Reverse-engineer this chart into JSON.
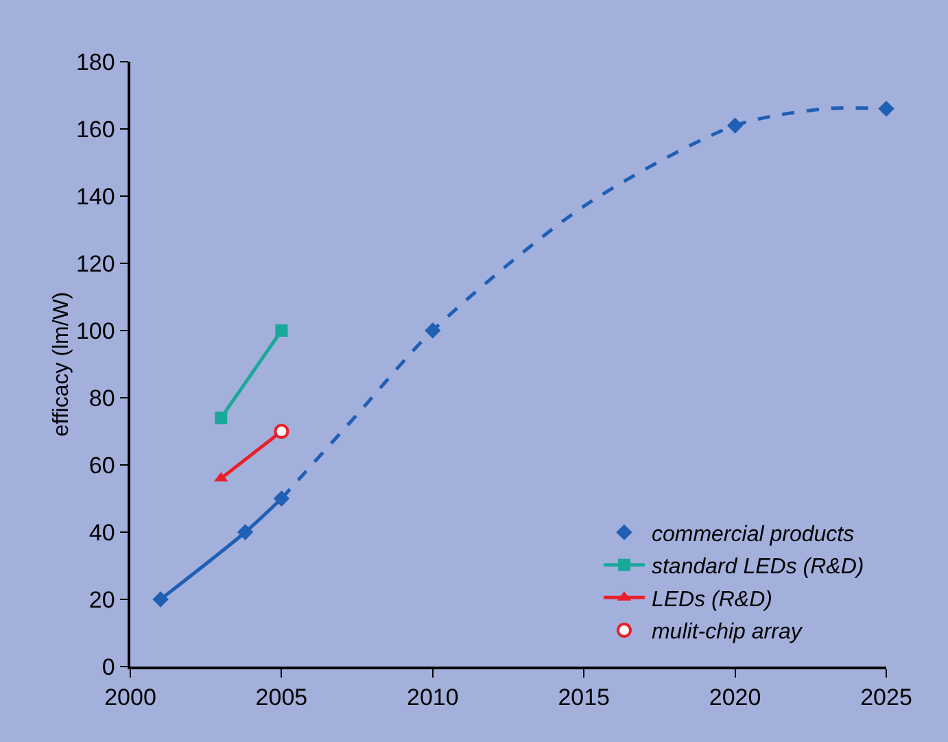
{
  "chart_data": {
    "type": "line",
    "ylabel": "efficacy (lm/W)",
    "xlim": [
      2000,
      2025
    ],
    "xticks": [
      2000,
      2005,
      2010,
      2015,
      2020,
      2025
    ],
    "ylim": [
      0,
      180
    ],
    "yticks": [
      0,
      20,
      40,
      60,
      80,
      100,
      120,
      140,
      160,
      180
    ],
    "grid": false,
    "legend": "bottom right",
    "series": [
      {
        "type": "line",
        "color": "#1f5fb4",
        "line_style": "solid",
        "marker": "none",
        "x": [
          2001,
          2003.8,
          2005
        ],
        "values": [
          20,
          40,
          50
        ]
      },
      {
        "type": "line",
        "color": "#1f5fb4",
        "line_style": "dashed",
        "marker": "none",
        "x": [
          2005,
          2007.5,
          2010,
          2015,
          2020,
          2023,
          2025
        ],
        "values": [
          50,
          75,
          100,
          137,
          161,
          166,
          166
        ]
      },
      {
        "type": "scatter",
        "name": "commercial products",
        "color": "#1f5fb4",
        "marker": "diamond",
        "x": [
          2001,
          2003.8,
          2005,
          2010,
          2020,
          2025
        ],
        "values": [
          20,
          40,
          50,
          100,
          161,
          166
        ]
      },
      {
        "type": "line",
        "name": "standard LEDs (R&D)",
        "color": "#1aa89a",
        "line_style": "solid",
        "marker": "square",
        "x": [
          2003,
          2005
        ],
        "values": [
          74,
          100
        ]
      },
      {
        "type": "line",
        "name": "LEDs (R&D)",
        "color": "#e8202a",
        "line_style": "solid",
        "marker": "triangle",
        "x": [
          2003,
          2005
        ],
        "values": [
          56,
          70
        ]
      },
      {
        "type": "scatter",
        "name": "mulit-chip array",
        "color": "#ffffff",
        "marker": "circle",
        "x": [
          2005
        ],
        "values": [
          70
        ]
      }
    ]
  }
}
